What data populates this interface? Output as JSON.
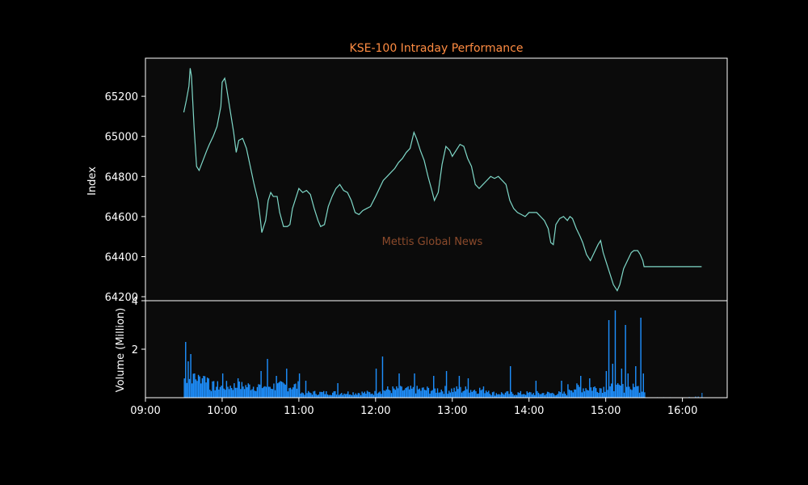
{
  "chart_data": {
    "type": "line",
    "title": "KSE-100 Intraday Performance",
    "watermark": "Mettis Global News",
    "colors": {
      "background": "#000000",
      "plot_background": "#0b0b0b",
      "frame": "#ffffff",
      "price_line": "#7fd8c8",
      "volume_bars": "#1e90ff",
      "title": "#ff8c42",
      "watermark": "#8b4a2b"
    },
    "price_panel": {
      "ylabel": "Index",
      "ylim": [
        64180,
        65390
      ],
      "yticks": [
        64200,
        64400,
        64600,
        64800,
        65000,
        65200
      ],
      "ytick_labels": [
        "64200",
        "64400",
        "64600",
        "64800",
        "65000",
        "65200"
      ],
      "series": {
        "points": [
          [
            "09:30",
            65120
          ],
          [
            "09:32",
            65180
          ],
          [
            "09:34",
            65250
          ],
          [
            "09:35",
            65340
          ],
          [
            "09:36",
            65300
          ],
          [
            "09:38",
            65050
          ],
          [
            "09:40",
            64850
          ],
          [
            "09:42",
            64830
          ],
          [
            "09:45",
            64880
          ],
          [
            "09:48",
            64930
          ],
          [
            "09:50",
            64960
          ],
          [
            "09:53",
            65000
          ],
          [
            "09:56",
            65050
          ],
          [
            "09:59",
            65150
          ],
          [
            "10:00",
            65270
          ],
          [
            "10:02",
            65290
          ],
          [
            "10:03",
            65260
          ],
          [
            "10:06",
            65140
          ],
          [
            "10:09",
            65020
          ],
          [
            "10:11",
            64920
          ],
          [
            "10:13",
            64980
          ],
          [
            "10:16",
            64990
          ],
          [
            "10:19",
            64940
          ],
          [
            "10:22",
            64850
          ],
          [
            "10:25",
            64760
          ],
          [
            "10:28",
            64680
          ],
          [
            "10:30",
            64580
          ],
          [
            "10:31",
            64520
          ],
          [
            "10:34",
            64580
          ],
          [
            "10:36",
            64680
          ],
          [
            "10:38",
            64720
          ],
          [
            "10:40",
            64700
          ],
          [
            "10:43",
            64700
          ],
          [
            "10:45",
            64620
          ],
          [
            "10:48",
            64550
          ],
          [
            "10:51",
            64550
          ],
          [
            "10:53",
            64560
          ],
          [
            "10:55",
            64640
          ],
          [
            "10:58",
            64700
          ],
          [
            "11:00",
            64740
          ],
          [
            "11:03",
            64720
          ],
          [
            "11:06",
            64730
          ],
          [
            "11:09",
            64710
          ],
          [
            "11:12",
            64640
          ],
          [
            "11:15",
            64580
          ],
          [
            "11:17",
            64550
          ],
          [
            "11:20",
            64560
          ],
          [
            "11:23",
            64650
          ],
          [
            "11:26",
            64700
          ],
          [
            "11:29",
            64740
          ],
          [
            "11:32",
            64760
          ],
          [
            "11:35",
            64730
          ],
          [
            "11:38",
            64720
          ],
          [
            "11:41",
            64680
          ],
          [
            "11:44",
            64620
          ],
          [
            "11:47",
            64610
          ],
          [
            "11:50",
            64630
          ],
          [
            "11:53",
            64640
          ],
          [
            "11:56",
            64650
          ],
          [
            "12:00",
            64700
          ],
          [
            "12:03",
            64740
          ],
          [
            "12:06",
            64780
          ],
          [
            "12:09",
            64800
          ],
          [
            "12:12",
            64820
          ],
          [
            "12:15",
            64840
          ],
          [
            "12:18",
            64870
          ],
          [
            "12:21",
            64890
          ],
          [
            "12:24",
            64920
          ],
          [
            "12:27",
            64940
          ],
          [
            "12:30",
            65020
          ],
          [
            "12:32",
            64990
          ],
          [
            "12:35",
            64930
          ],
          [
            "12:38",
            64880
          ],
          [
            "12:41",
            64800
          ],
          [
            "12:44",
            64730
          ],
          [
            "12:46",
            64680
          ],
          [
            "12:49",
            64720
          ],
          [
            "12:52",
            64860
          ],
          [
            "12:55",
            64950
          ],
          [
            "12:58",
            64930
          ],
          [
            "13:00",
            64900
          ],
          [
            "13:03",
            64930
          ],
          [
            "13:06",
            64960
          ],
          [
            "13:09",
            64950
          ],
          [
            "13:12",
            64890
          ],
          [
            "13:15",
            64850
          ],
          [
            "13:18",
            64760
          ],
          [
            "13:21",
            64740
          ],
          [
            "13:24",
            64760
          ],
          [
            "13:27",
            64780
          ],
          [
            "13:30",
            64800
          ],
          [
            "13:33",
            64790
          ],
          [
            "13:36",
            64800
          ],
          [
            "13:39",
            64780
          ],
          [
            "13:42",
            64760
          ],
          [
            "13:45",
            64680
          ],
          [
            "13:48",
            64640
          ],
          [
            "13:51",
            64620
          ],
          [
            "13:54",
            64610
          ],
          [
            "13:57",
            64600
          ],
          [
            "14:00",
            64620
          ],
          [
            "14:03",
            64620
          ],
          [
            "14:06",
            64620
          ],
          [
            "14:09",
            64600
          ],
          [
            "14:12",
            64580
          ],
          [
            "14:15",
            64540
          ],
          [
            "14:17",
            64470
          ],
          [
            "14:19",
            64460
          ],
          [
            "14:21",
            64560
          ],
          [
            "14:24",
            64590
          ],
          [
            "14:27",
            64600
          ],
          [
            "14:30",
            64580
          ],
          [
            "14:32",
            64600
          ],
          [
            "14:34",
            64590
          ],
          [
            "14:37",
            64540
          ],
          [
            "14:40",
            64500
          ],
          [
            "14:42",
            64470
          ],
          [
            "14:45",
            64410
          ],
          [
            "14:48",
            64380
          ],
          [
            "14:51",
            64420
          ],
          [
            "14:54",
            64460
          ],
          [
            "14:56",
            64480
          ],
          [
            "14:58",
            64420
          ],
          [
            "15:00",
            64380
          ],
          [
            "15:03",
            64320
          ],
          [
            "15:06",
            64260
          ],
          [
            "15:09",
            64230
          ],
          [
            "15:11",
            64260
          ],
          [
            "15:14",
            64340
          ],
          [
            "15:17",
            64380
          ],
          [
            "15:20",
            64420
          ],
          [
            "15:22",
            64430
          ],
          [
            "15:25",
            64430
          ],
          [
            "15:27",
            64410
          ],
          [
            "15:29",
            64380
          ],
          [
            "15:30",
            64350
          ],
          [
            "16:15",
            64350
          ]
        ]
      }
    },
    "volume_panel": {
      "ylabel": "Volume (Million)",
      "ylim": [
        0,
        4
      ],
      "yticks": [
        2,
        4
      ],
      "ytick_labels": [
        "2",
        "4"
      ],
      "spikes": [
        [
          "09:31",
          2.3
        ],
        [
          "09:33",
          1.5
        ],
        [
          "09:35",
          1.8
        ],
        [
          "09:38",
          1.0
        ],
        [
          "09:45",
          0.9
        ],
        [
          "10:00",
          1.0
        ],
        [
          "10:12",
          0.8
        ],
        [
          "10:30",
          1.1
        ],
        [
          "10:35",
          1.6
        ],
        [
          "10:42",
          0.9
        ],
        [
          "10:50",
          1.2
        ],
        [
          "11:00",
          1.0
        ],
        [
          "11:05",
          0.7
        ],
        [
          "11:30",
          0.6
        ],
        [
          "12:00",
          1.2
        ],
        [
          "12:05",
          1.7
        ],
        [
          "12:18",
          1.0
        ],
        [
          "12:30",
          1.0
        ],
        [
          "12:45",
          0.9
        ],
        [
          "12:55",
          1.1
        ],
        [
          "13:05",
          0.9
        ],
        [
          "13:12",
          0.8
        ],
        [
          "13:45",
          1.3
        ],
        [
          "14:05",
          0.7
        ],
        [
          "14:25",
          0.7
        ],
        [
          "14:40",
          0.9
        ],
        [
          "14:47",
          0.8
        ],
        [
          "15:00",
          1.1
        ],
        [
          "15:02",
          3.2
        ],
        [
          "15:05",
          1.4
        ],
        [
          "15:07",
          3.6
        ],
        [
          "15:12",
          1.2
        ],
        [
          "15:15",
          3.0
        ],
        [
          "15:17",
          1.0
        ],
        [
          "15:23",
          1.3
        ],
        [
          "15:27",
          3.3
        ],
        [
          "15:29",
          1.0
        ]
      ],
      "after_close": [
        [
          "15:40",
          0.02
        ],
        [
          "15:45",
          0.02
        ],
        [
          "15:50",
          0.02
        ],
        [
          "16:05",
          0.03
        ],
        [
          "16:10",
          0.05
        ],
        [
          "16:12",
          0.05
        ],
        [
          "16:15",
          0.2
        ]
      ]
    },
    "x_axis": {
      "xlim": [
        "09:00",
        "16:35"
      ],
      "ticks": [
        "09:00",
        "10:00",
        "11:00",
        "12:00",
        "13:00",
        "14:00",
        "15:00",
        "16:00"
      ],
      "session": [
        "09:30",
        "15:30"
      ]
    }
  }
}
